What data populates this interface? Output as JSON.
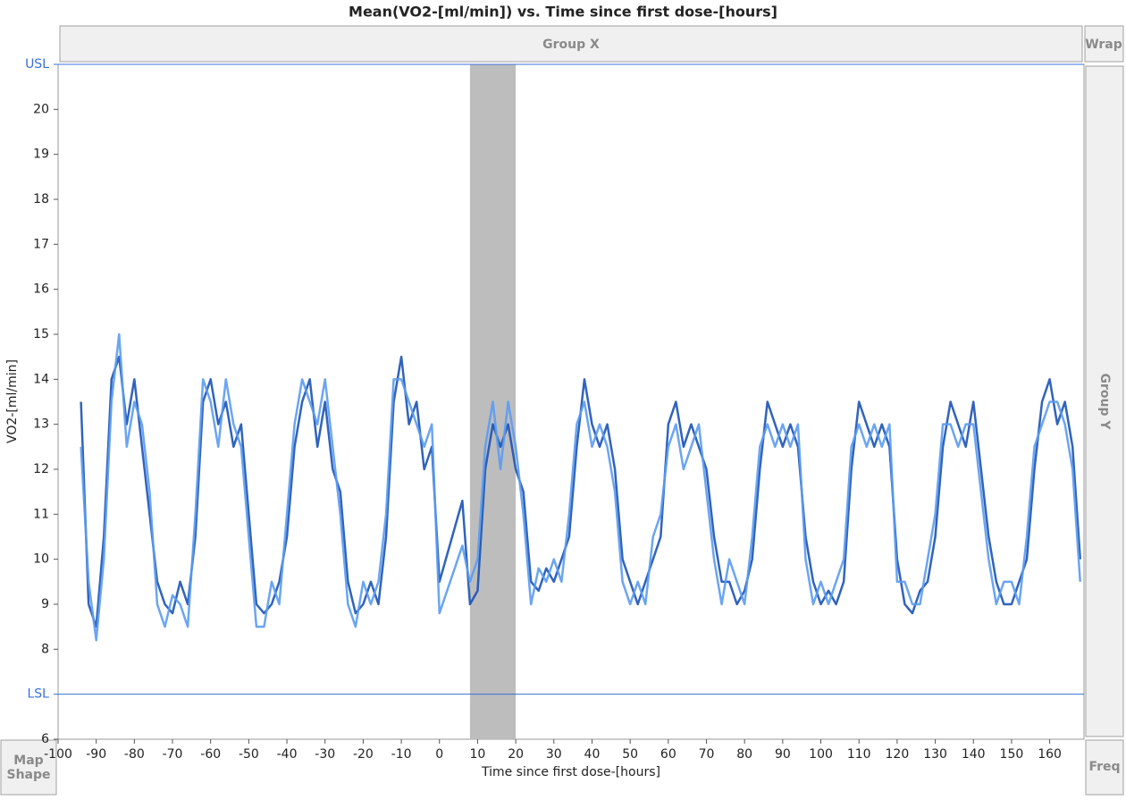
{
  "chart_data": {
    "type": "line",
    "title": "Mean(VO2-[ml/min]) vs. Time since first dose-[hours]",
    "x_label": "Time since first dose-[hours]",
    "y_label": "VO2-[ml/min]",
    "panel_labels": {
      "group_x": "Group X",
      "group_y": "Group Y",
      "wrap": "Wrap",
      "map_shape": "Map Shape",
      "freq": "Freq"
    },
    "xlim": [
      -100,
      169
    ],
    "ylim": [
      6,
      21
    ],
    "xticks": [
      -100,
      -90,
      -80,
      -70,
      -60,
      -50,
      -40,
      -30,
      -20,
      -10,
      0,
      10,
      20,
      30,
      40,
      50,
      60,
      70,
      80,
      90,
      100,
      110,
      120,
      130,
      140,
      150,
      160
    ],
    "yticks": [
      6,
      8,
      9,
      10,
      11,
      12,
      13,
      14,
      15,
      16,
      17,
      18,
      19,
      20
    ],
    "reference_lines": [
      {
        "label": "USL",
        "value": 21,
        "color": "#3a6fd8"
      },
      {
        "label": "LSL",
        "value": 7,
        "color": "#3a6fd8"
      }
    ],
    "shaded_range": {
      "x": [
        8,
        20
      ],
      "color": "#bdbdbd"
    },
    "x": [
      -94,
      -92,
      -90,
      -88,
      -86,
      -84,
      -82,
      -80,
      -78,
      -76,
      -74,
      -72,
      -70,
      -68,
      -66,
      -64,
      -62,
      -60,
      -58,
      -56,
      -54,
      -52,
      -50,
      -48,
      -46,
      -44,
      -42,
      -40,
      -38,
      -36,
      -34,
      -32,
      -30,
      -28,
      -26,
      -24,
      -22,
      -20,
      -18,
      -16,
      -14,
      -12,
      -10,
      -8,
      -6,
      -4,
      -2,
      0,
      6,
      8,
      10,
      12,
      14,
      16,
      18,
      20,
      22,
      24,
      26,
      28,
      30,
      32,
      34,
      36,
      38,
      40,
      42,
      44,
      46,
      48,
      50,
      52,
      54,
      56,
      58,
      60,
      62,
      64,
      66,
      68,
      70,
      72,
      74,
      76,
      78,
      80,
      82,
      84,
      86,
      88,
      90,
      92,
      94,
      96,
      98,
      100,
      102,
      104,
      106,
      108,
      110,
      112,
      114,
      116,
      118,
      120,
      122,
      124,
      126,
      128,
      130,
      132,
      134,
      136,
      138,
      140,
      142,
      144,
      146,
      148,
      150,
      152,
      154,
      156,
      158,
      160,
      162,
      164,
      166,
      168
    ],
    "series": [
      {
        "color": "#1a52b5",
        "values": [
          13.5,
          9.0,
          8.5,
          10.5,
          14.0,
          14.5,
          13.0,
          14.0,
          12.5,
          11.0,
          9.5,
          9.0,
          8.8,
          9.5,
          9.0,
          10.5,
          13.5,
          14.0,
          13.0,
          13.5,
          12.5,
          13.0,
          11.0,
          9.0,
          8.8,
          9.0,
          9.5,
          10.5,
          12.5,
          13.5,
          14.0,
          12.5,
          13.5,
          12.0,
          11.5,
          9.5,
          8.8,
          9.0,
          9.5,
          9.0,
          10.5,
          13.5,
          14.5,
          13.0,
          13.5,
          12.0,
          12.5,
          9.5,
          11.3,
          9.0,
          9.3,
          12.0,
          13.0,
          12.5,
          13.0,
          12.0,
          11.5,
          9.5,
          9.3,
          9.8,
          9.5,
          10.0,
          10.5,
          12.5,
          14.0,
          13.0,
          12.5,
          13.0,
          12.0,
          10.0,
          9.5,
          9.0,
          9.5,
          10.0,
          10.5,
          13.0,
          13.5,
          12.5,
          13.0,
          12.5,
          12.0,
          10.5,
          9.5,
          9.5,
          9.0,
          9.3,
          10.0,
          12.0,
          13.5,
          13.0,
          12.5,
          13.0,
          12.5,
          10.5,
          9.5,
          9.0,
          9.3,
          9.0,
          9.5,
          12.0,
          13.5,
          13.0,
          12.5,
          13.0,
          12.5,
          10.0,
          9.0,
          8.8,
          9.3,
          9.5,
          10.5,
          12.5,
          13.5,
          13.0,
          12.5,
          13.5,
          12.0,
          10.5,
          9.5,
          9.0,
          9.0,
          9.5,
          10.0,
          12.0,
          13.5,
          14.0,
          13.0,
          13.5,
          12.5,
          10.0
        ]
      },
      {
        "color": "#5b9bf0",
        "values": [
          12.5,
          9.5,
          8.2,
          10.0,
          13.5,
          15.0,
          12.5,
          13.5,
          13.0,
          11.5,
          9.0,
          8.5,
          9.2,
          9.0,
          8.5,
          11.0,
          14.0,
          13.5,
          12.5,
          14.0,
          13.0,
          12.5,
          10.5,
          8.5,
          8.5,
          9.5,
          9.0,
          11.0,
          13.0,
          14.0,
          13.5,
          13.0,
          14.0,
          12.5,
          11.0,
          9.0,
          8.5,
          9.5,
          9.0,
          9.5,
          11.0,
          14.0,
          14.0,
          13.5,
          13.0,
          12.5,
          13.0,
          8.8,
          10.3,
          9.5,
          10.0,
          12.5,
          13.5,
          12.0,
          13.5,
          12.5,
          11.0,
          9.0,
          9.8,
          9.5,
          10.0,
          9.5,
          11.0,
          13.0,
          13.5,
          12.5,
          13.0,
          12.5,
          11.5,
          9.5,
          9.0,
          9.5,
          9.0,
          10.5,
          11.0,
          12.5,
          13.0,
          12.0,
          12.5,
          13.0,
          11.5,
          10.0,
          9.0,
          10.0,
          9.5,
          9.0,
          10.5,
          12.5,
          13.0,
          12.5,
          13.0,
          12.5,
          13.0,
          10.0,
          9.0,
          9.5,
          9.0,
          9.5,
          10.0,
          12.5,
          13.0,
          12.5,
          13.0,
          12.5,
          13.0,
          9.5,
          9.5,
          9.0,
          9.0,
          10.0,
          11.0,
          13.0,
          13.0,
          12.5,
          13.0,
          13.0,
          11.5,
          10.0,
          9.0,
          9.5,
          9.5,
          9.0,
          10.5,
          12.5,
          13.0,
          13.5,
          13.5,
          13.0,
          12.0,
          9.5
        ]
      }
    ]
  }
}
